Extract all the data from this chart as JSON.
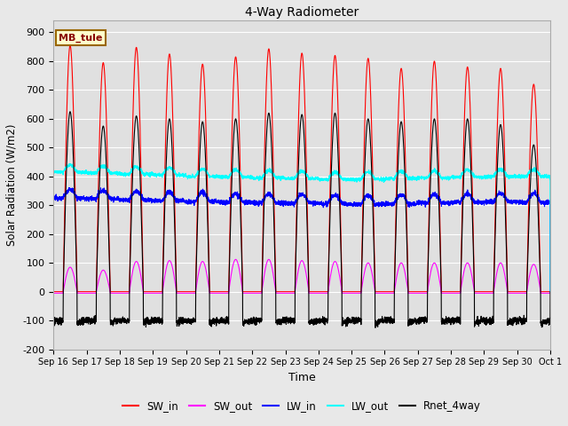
{
  "title": "4-Way Radiometer",
  "xlabel": "Time",
  "ylabel": "Solar Radiation (W/m2)",
  "ylim": [
    -200,
    940
  ],
  "yticks": [
    -200,
    -100,
    0,
    100,
    200,
    300,
    400,
    500,
    600,
    700,
    800,
    900
  ],
  "background_color": "#e8e8e8",
  "plot_bg_color": "#e0e0e0",
  "annotation_text": "MB_tule",
  "annotation_bg": "#ffffcc",
  "annotation_border": "#996600",
  "n_days": 15,
  "tick_labels": [
    "Sep 16",
    "Sep 17",
    "Sep 18",
    "Sep 19",
    "Sep 20",
    "Sep 21",
    "Sep 22",
    "Sep 23",
    "Sep 24",
    "Sep 25",
    "Sep 26",
    "Sep 27",
    "Sep 28",
    "Sep 29",
    "Sep 30",
    "Oct 1"
  ],
  "legend_entries": [
    "SW_in",
    "SW_out",
    "LW_in",
    "LW_out",
    "Rnet_4way"
  ],
  "legend_colors": [
    "#ff0000",
    "#ff00ff",
    "#0000ff",
    "#00ffff",
    "#000000"
  ],
  "SW_in_peak": [
    855,
    795,
    848,
    825,
    790,
    815,
    843,
    828,
    820,
    810,
    775,
    800,
    780,
    775,
    720
  ],
  "SW_out_peak": [
    85,
    75,
    105,
    108,
    105,
    112,
    112,
    108,
    105,
    100,
    100,
    100,
    100,
    100,
    95
  ],
  "LW_in_base": [
    325,
    322,
    318,
    315,
    313,
    310,
    308,
    308,
    305,
    303,
    305,
    308,
    310,
    312,
    310
  ],
  "LW_out_base": [
    415,
    412,
    408,
    405,
    400,
    398,
    395,
    393,
    390,
    390,
    393,
    395,
    398,
    400,
    400
  ],
  "Rnet_peak": [
    625,
    575,
    610,
    600,
    590,
    600,
    620,
    615,
    620,
    600,
    590,
    600,
    600,
    580,
    510
  ],
  "Rnet_night": -100,
  "grid_color": "#ffffff",
  "day_start": 0.29,
  "day_end": 0.71,
  "pts_per_day": 288
}
